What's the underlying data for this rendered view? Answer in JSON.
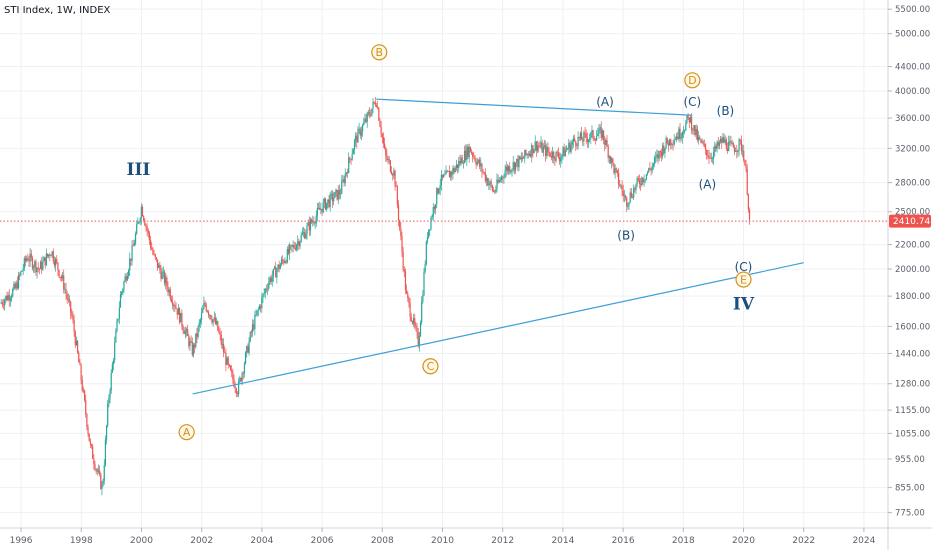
{
  "header": {
    "symbol_title": "STI Index, 1W, INDEX"
  },
  "price_label": "2410.74",
  "colors": {
    "up": "#26a69a",
    "down": "#ef5350",
    "trend": "#3d9fd8",
    "wave_orange": "#d4901a",
    "wave_blue": "#1c4f7a",
    "price_line": "#ef5350",
    "grid": "#eef0f3",
    "axis_text": "#5d606b"
  },
  "chart_data": {
    "type": "candlestick",
    "title": "STI Index, 1W, INDEX",
    "x_ticks": [
      "1996",
      "1998",
      "2000",
      "2002",
      "2004",
      "2006",
      "2008",
      "2010",
      "2012",
      "2014",
      "2016",
      "2018",
      "2020",
      "2022",
      "2024"
    ],
    "y_ticks": [
      "5500.00",
      "5000.00",
      "4400.00",
      "4000.00",
      "3600.00",
      "3200.00",
      "2800.00",
      "2500.00",
      "2200.00",
      "2000.00",
      "1800.00",
      "1600.00",
      "1440.00",
      "1280.00",
      "1155.00",
      "1055.00",
      "955.00",
      "855.00",
      "775.00"
    ],
    "y_scale": "log",
    "ylim": [
      730,
      5700
    ],
    "xlim": [
      1995.3,
      2024.8
    ],
    "last_price": 2410.74,
    "series": [
      {
        "x": [
          1995.3,
          1995.8,
          1996.2,
          1996.6,
          1997.0,
          1997.4,
          1997.7,
          1998.0,
          1998.3,
          1998.7,
          1998.9,
          1999.3,
          1999.7,
          2000.0,
          2000.4,
          2000.8,
          2001.2,
          2001.7,
          2002.1,
          2002.5,
          2002.9,
          2003.2,
          2003.7,
          2004.2,
          2004.8,
          2005.4,
          2006.0,
          2006.6,
          2007.1,
          2007.5,
          2007.8,
          2008.1,
          2008.4,
          2008.8,
          2009.2,
          2009.5,
          2009.9,
          2010.4,
          2010.9,
          2011.3,
          2011.7,
          2012.1,
          2012.6,
          2013.1,
          2013.5,
          2013.9,
          2014.4,
          2014.9,
          2015.3,
          2015.7,
          2016.1,
          2016.5,
          2016.9,
          2017.4,
          2017.9,
          2018.2,
          2018.5,
          2018.9,
          2019.3,
          2019.6,
          2019.9,
          2020.0,
          2020.1,
          2020.2
        ],
        "values": [
          1750,
          1850,
          2100,
          2000,
          2150,
          1900,
          1650,
          1300,
          1000,
          850,
          1200,
          1800,
          2150,
          2550,
          2100,
          1900,
          1700,
          1450,
          1750,
          1600,
          1350,
          1250,
          1600,
          1900,
          2100,
          2300,
          2550,
          2700,
          3300,
          3600,
          3875,
          3100,
          2900,
          1800,
          1500,
          2300,
          2800,
          2950,
          3200,
          2950,
          2700,
          2950,
          3050,
          3250,
          3150,
          3100,
          3300,
          3350,
          3400,
          2950,
          2600,
          2800,
          2950,
          3250,
          3400,
          3600,
          3300,
          3100,
          3300,
          3200,
          3250,
          3150,
          2850,
          2410.74
        ]
      }
    ],
    "annotations": [
      {
        "text": "III",
        "x": 1999.9,
        "y": 2950,
        "style": "blue-large"
      },
      {
        "text": "B",
        "x": 2007.9,
        "y": 4650,
        "style": "orange-circle"
      },
      {
        "text": "A",
        "x": 2001.5,
        "y": 1060,
        "style": "orange-circle"
      },
      {
        "text": "C",
        "x": 2009.6,
        "y": 1370,
        "style": "orange-circle"
      },
      {
        "text": "D",
        "x": 2018.3,
        "y": 4170,
        "style": "orange-circle"
      },
      {
        "text": "E",
        "x": 2020.0,
        "y": 1920,
        "style": "orange-circle"
      },
      {
        "text": "(A)",
        "x": 2015.4,
        "y": 3830,
        "style": "blue"
      },
      {
        "text": "(C)",
        "x": 2018.3,
        "y": 3830,
        "style": "blue"
      },
      {
        "text": "(B)",
        "x": 2019.4,
        "y": 3700,
        "style": "blue"
      },
      {
        "text": "(A)",
        "x": 2018.8,
        "y": 2780,
        "style": "blue"
      },
      {
        "text": "(B)",
        "x": 2016.1,
        "y": 2280,
        "style": "blue"
      },
      {
        "text": "(C)",
        "x": 2020.0,
        "y": 2015,
        "style": "blue"
      },
      {
        "text": "IV",
        "x": 2020.0,
        "y": 1750,
        "style": "blue-large"
      }
    ],
    "trendlines": [
      {
        "from": [
          2007.8,
          3875
        ],
        "to": [
          2018.3,
          3640
        ]
      },
      {
        "from": [
          2001.7,
          1230
        ],
        "to": [
          2022.0,
          2050
        ]
      }
    ]
  }
}
